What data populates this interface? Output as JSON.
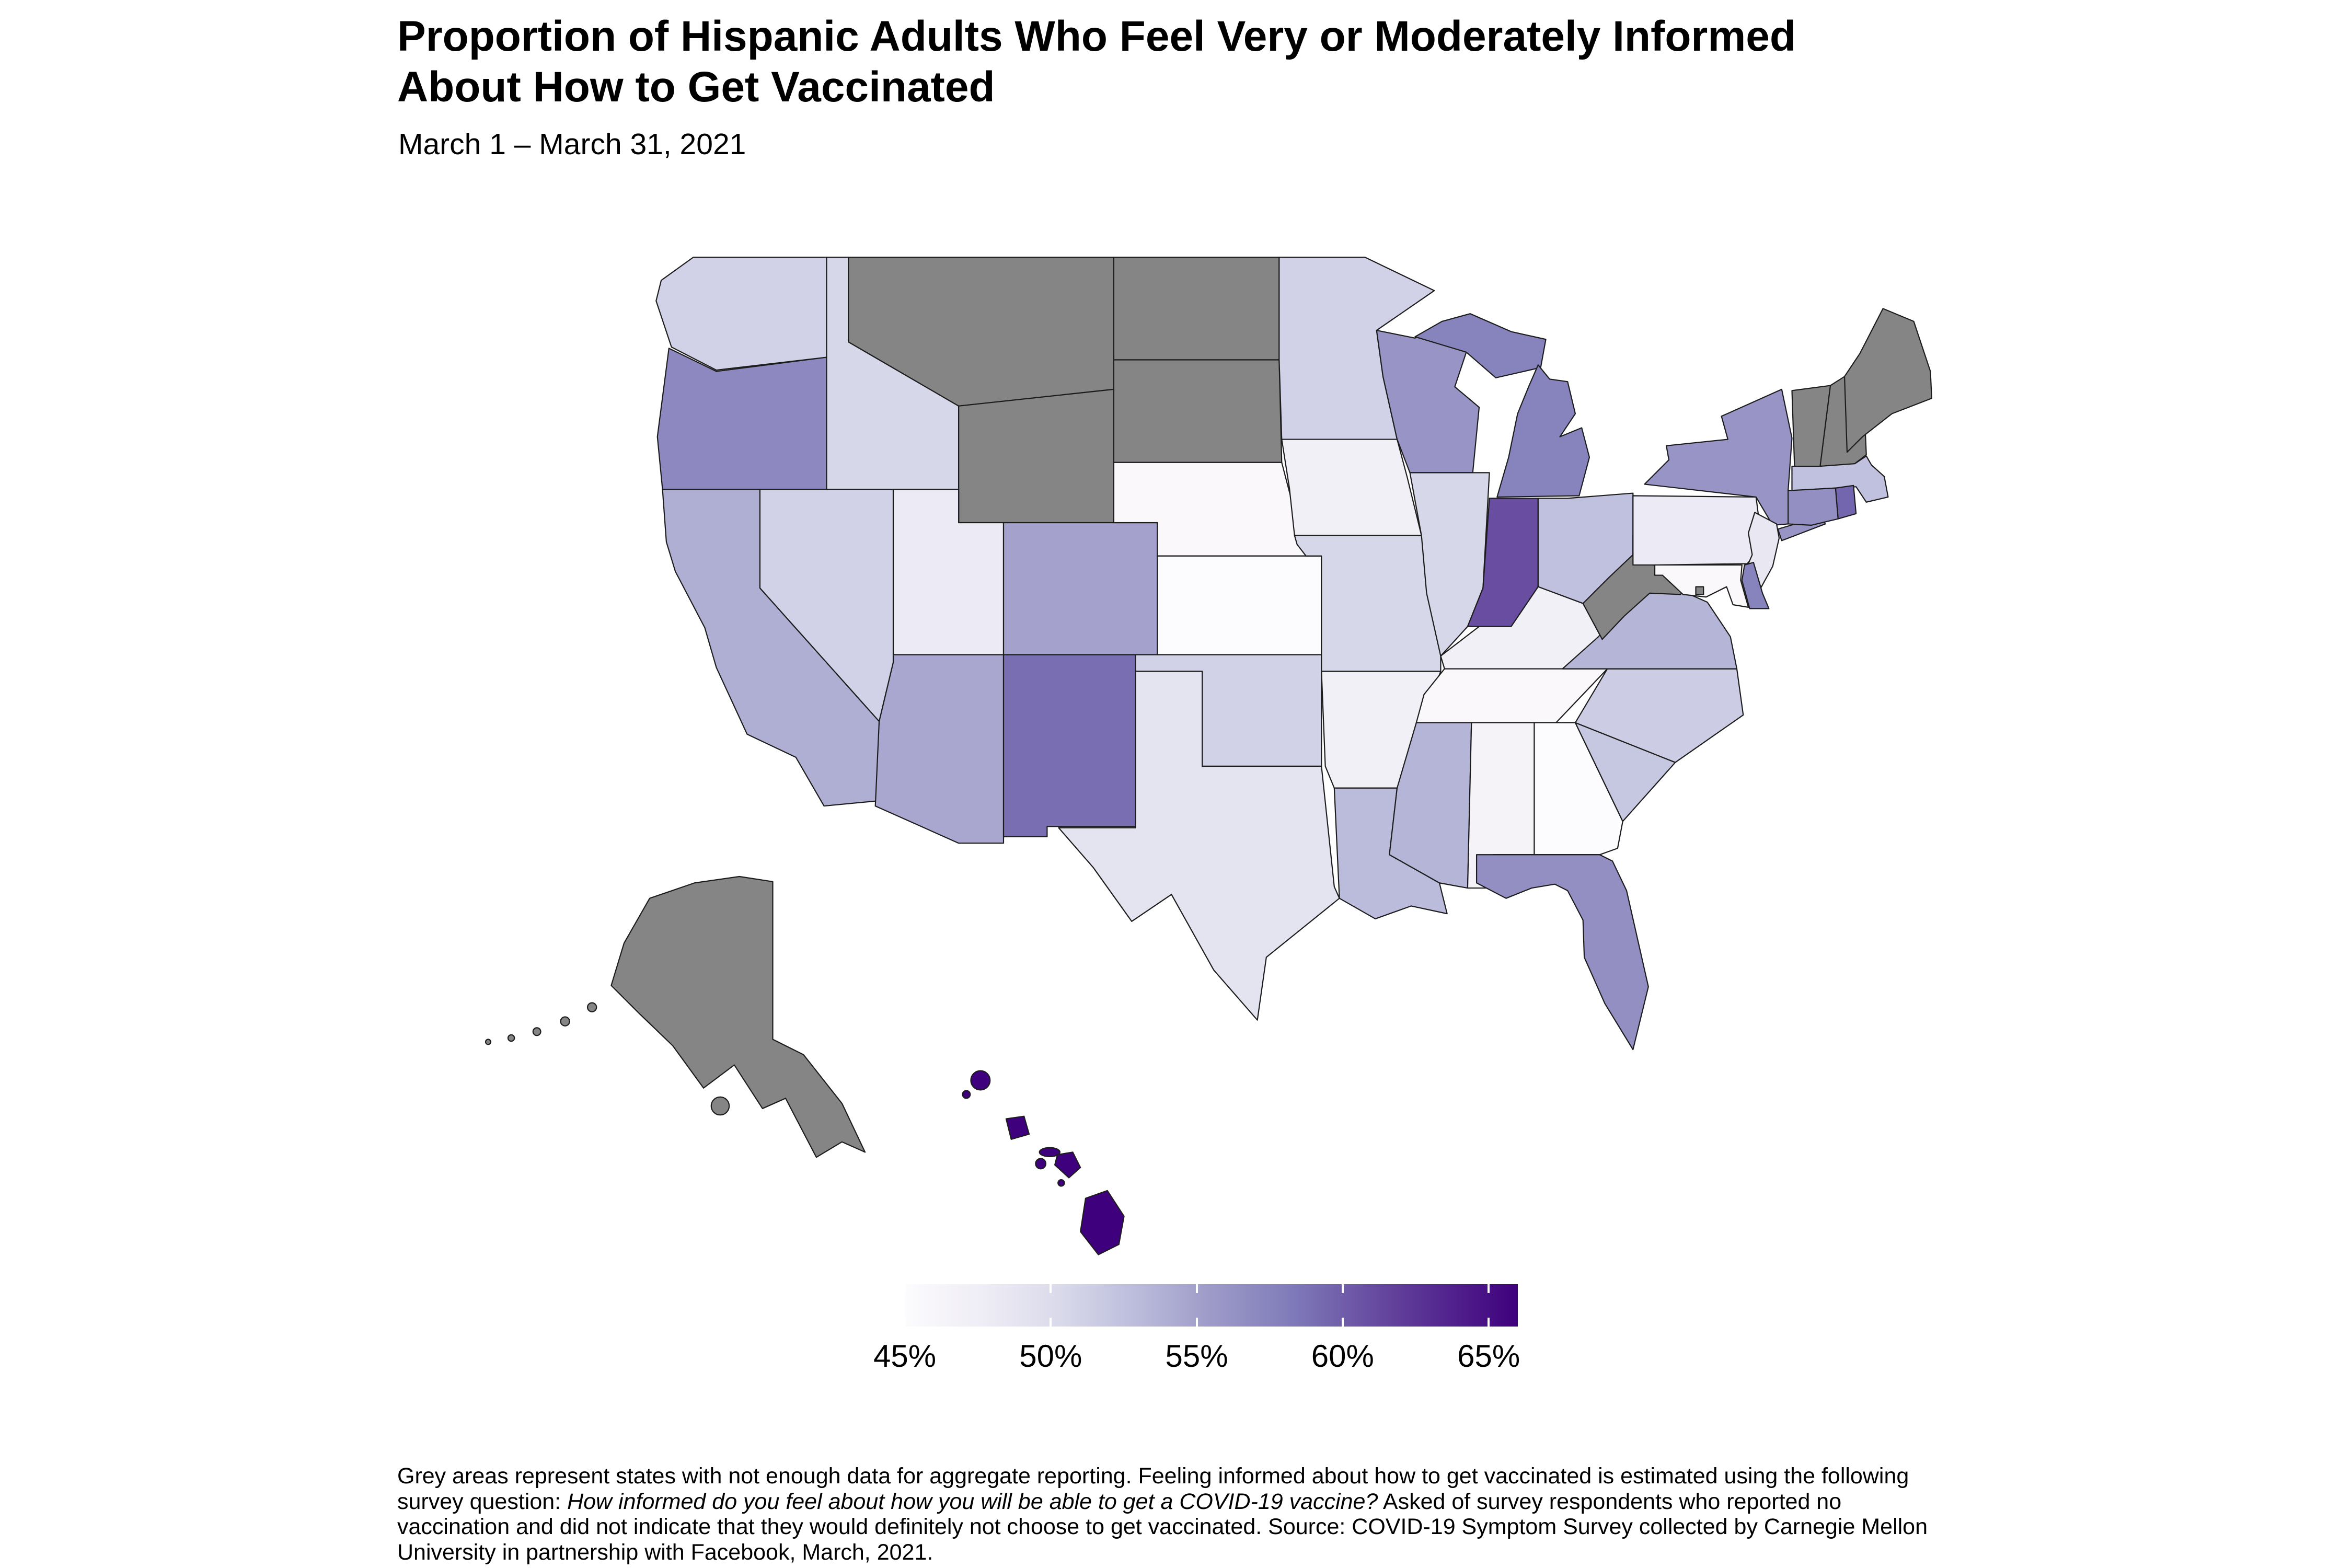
{
  "title": {
    "line1": "Proportion of Hispanic Adults Who Feel Very or Moderately Informed",
    "line2": "About How to Get Vaccinated"
  },
  "subtitle": "March 1 – March 31, 2021",
  "legend": {
    "scale_min": 45,
    "scale_max": 66,
    "tick_values": [
      45,
      50,
      55,
      60,
      65
    ],
    "tick_labels": [
      "45%",
      "50%",
      "55%",
      "60%",
      "65%"
    ],
    "palette": [
      "#fcfbfd",
      "#efedf5",
      "#dadaeb",
      "#bcbddc",
      "#9e9ac8",
      "#807dba",
      "#6a51a3",
      "#54278f",
      "#3f007d"
    ],
    "no_data_color": "#858585",
    "border_color": "#1c1c1c"
  },
  "footnote": {
    "lines": [
      [
        {
          "text": "Grey areas represent states with not enough data for aggregate reporting. Feeling informed about how to get vaccinated is estimated using the following",
          "italic": false
        }
      ],
      [
        {
          "text": "survey question: ",
          "italic": false
        },
        {
          "text": "How informed do you feel about how you will be able to get a COVID-19 vaccine?",
          "italic": true
        },
        {
          "text": " Asked of survey respondents who reported no",
          "italic": false
        }
      ],
      [
        {
          "text": "vaccination and did not indicate that they would definitely not choose to get vaccinated. Source: COVID-19 Symptom Survey collected by Carnegie Mellon",
          "italic": false
        }
      ],
      [
        {
          "text": "University in partnership with Facebook, March, 2021.",
          "italic": false
        }
      ]
    ]
  },
  "chart_data": {
    "type": "choropleth",
    "region": "United States",
    "unit": "percent",
    "value_label": "Share of Hispanic adults who feel very or moderately informed about how to get vaccinated",
    "period": "March 1 – March 31, 2021",
    "no_data_meaning": "Grey areas represent states with not enough data for aggregate reporting",
    "no_data_states": [
      "MT",
      "WY",
      "ND",
      "SD",
      "WV",
      "VT",
      "NH",
      "ME",
      "AK",
      "DC"
    ],
    "states": [
      {
        "abbr": "WA",
        "name": "Washington",
        "value": 51
      },
      {
        "abbr": "OR",
        "name": "Oregon",
        "value": 57
      },
      {
        "abbr": "CA",
        "name": "California",
        "value": 54
      },
      {
        "abbr": "NV",
        "name": "Nevada",
        "value": 51
      },
      {
        "abbr": "ID",
        "name": "Idaho",
        "value": 50.5
      },
      {
        "abbr": "MT",
        "name": "Montana",
        "value": null
      },
      {
        "abbr": "WY",
        "name": "Wyoming",
        "value": null
      },
      {
        "abbr": "UT",
        "name": "Utah",
        "value": 48
      },
      {
        "abbr": "CO",
        "name": "Colorado",
        "value": 55
      },
      {
        "abbr": "AZ",
        "name": "Arizona",
        "value": 54.5
      },
      {
        "abbr": "NM",
        "name": "New Mexico",
        "value": 59
      },
      {
        "abbr": "ND",
        "name": "North Dakota",
        "value": null
      },
      {
        "abbr": "SD",
        "name": "South Dakota",
        "value": null
      },
      {
        "abbr": "NE",
        "name": "Nebraska",
        "value": 45.5
      },
      {
        "abbr": "KS",
        "name": "Kansas",
        "value": 45
      },
      {
        "abbr": "OK",
        "name": "Oklahoma",
        "value": 51
      },
      {
        "abbr": "TX",
        "name": "Texas",
        "value": 49
      },
      {
        "abbr": "MN",
        "name": "Minnesota",
        "value": 51
      },
      {
        "abbr": "IA",
        "name": "Iowa",
        "value": 47
      },
      {
        "abbr": "MO",
        "name": "Missouri",
        "value": 50.5
      },
      {
        "abbr": "AR",
        "name": "Arkansas",
        "value": 47
      },
      {
        "abbr": "LA",
        "name": "Louisiana",
        "value": 53
      },
      {
        "abbr": "WI",
        "name": "Wisconsin",
        "value": 56
      },
      {
        "abbr": "IL",
        "name": "Illinois",
        "value": 50.5
      },
      {
        "abbr": "MI",
        "name": "Michigan",
        "value": 57.5
      },
      {
        "abbr": "IN",
        "name": "Indiana",
        "value": 61
      },
      {
        "abbr": "OH",
        "name": "Ohio",
        "value": 52.5
      },
      {
        "abbr": "KY",
        "name": "Kentucky",
        "value": 47
      },
      {
        "abbr": "TN",
        "name": "Tennessee",
        "value": 45.5
      },
      {
        "abbr": "MS",
        "name": "Mississippi",
        "value": 53.5
      },
      {
        "abbr": "AL",
        "name": "Alabama",
        "value": 46.5
      },
      {
        "abbr": "GA",
        "name": "Georgia",
        "value": 45
      },
      {
        "abbr": "FL",
        "name": "Florida",
        "value": 56.5
      },
      {
        "abbr": "SC",
        "name": "South Carolina",
        "value": 52
      },
      {
        "abbr": "NC",
        "name": "North Carolina",
        "value": 51.5
      },
      {
        "abbr": "VA",
        "name": "Virginia",
        "value": 53.5
      },
      {
        "abbr": "WV",
        "name": "West Virginia",
        "value": null
      },
      {
        "abbr": "PA",
        "name": "Pennsylvania",
        "value": 48
      },
      {
        "abbr": "NY",
        "name": "New York",
        "value": 56
      },
      {
        "abbr": "NJ",
        "name": "New Jersey",
        "value": 48.5
      },
      {
        "abbr": "DE",
        "name": "Delaware",
        "value": 57.5
      },
      {
        "abbr": "MD",
        "name": "Maryland",
        "value": 45.5
      },
      {
        "abbr": "DC",
        "name": "District of Columbia",
        "value": null
      },
      {
        "abbr": "VT",
        "name": "Vermont",
        "value": null
      },
      {
        "abbr": "NH",
        "name": "New Hampshire",
        "value": null
      },
      {
        "abbr": "ME",
        "name": "Maine",
        "value": null
      },
      {
        "abbr": "MA",
        "name": "Massachusetts",
        "value": 52.5
      },
      {
        "abbr": "CT",
        "name": "Connecticut",
        "value": 56.5
      },
      {
        "abbr": "RI",
        "name": "Rhode Island",
        "value": 59.5
      },
      {
        "abbr": "AK",
        "name": "Alaska",
        "value": null
      },
      {
        "abbr": "HI",
        "name": "Hawaii",
        "value": 66
      }
    ]
  }
}
